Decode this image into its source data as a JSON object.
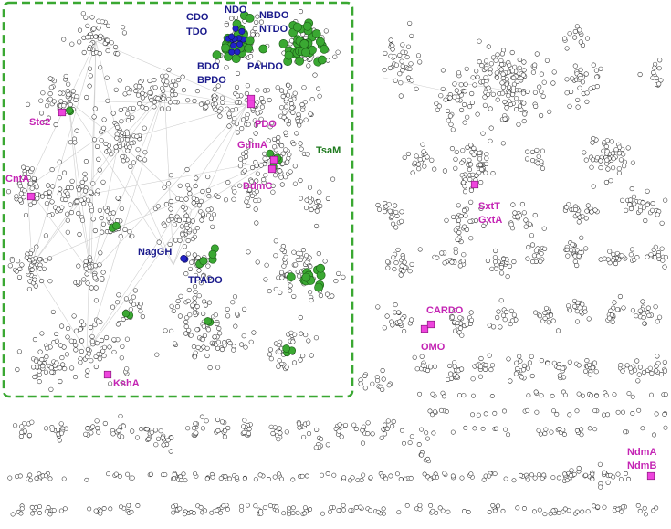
{
  "colors": {
    "box_border": "#3aa832",
    "label_blue": "#1a1a8c",
    "label_pink": "#c424b4",
    "label_green": "#1e7a1e",
    "node_default": "#ffffff",
    "node_green": "#3aa832",
    "node_blue": "#2222c8",
    "node_pink": "#ee44dd"
  },
  "labels": {
    "cdo": "CDO",
    "tdo": "TDO",
    "ndo": "NDO",
    "nbdo": "NBDO",
    "ntdo": "NTDO",
    "bdo": "BDO",
    "bpdo": "BPDO",
    "pahdo": "PAHDO",
    "stc2": "Stc2",
    "pdo": "PDO",
    "gdma": "GdmA",
    "tsam": "TsaM",
    "ddmc": "DdmC",
    "cnta": "CntA",
    "naggh": "NagGH",
    "tpado": "TPADO",
    "ksha": "KshA",
    "sxtt": "SxtT",
    "gxta": "GxtA",
    "cardo": "CARDO",
    "omo": "OMO",
    "ndma": "NdmA",
    "ndmb": "NdmB"
  }
}
